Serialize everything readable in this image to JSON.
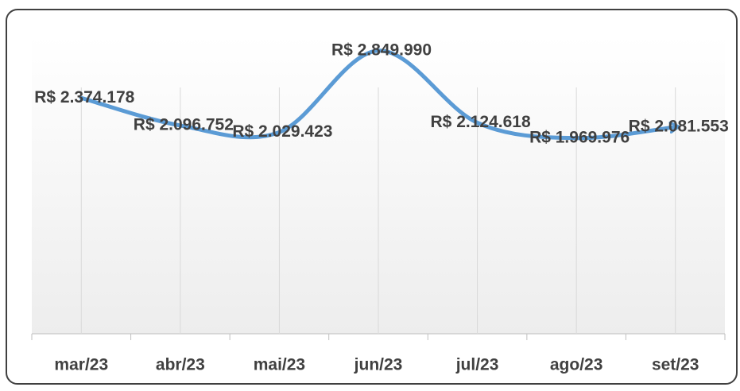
{
  "chart_data": {
    "type": "line",
    "categories": [
      "mar/23",
      "abr/23",
      "mai/23",
      "jun/23",
      "jul/23",
      "ago/23",
      "set/23"
    ],
    "series": [
      {
        "color": "#5b9bd5",
        "values": [
          2374178,
          2096752,
          2029423,
          2849990,
          2124618,
          1969976,
          2081553
        ],
        "value_labels": [
          "R$ 2.374.178",
          "R$ 2.096.752",
          "R$ 2.029.423",
          "R$ 2.849.990",
          "R$ 2.124.618",
          "R$ 1.969.976",
          "R$ 2.081.553"
        ]
      }
    ],
    "ylim": [
      0,
      3000000
    ]
  }
}
